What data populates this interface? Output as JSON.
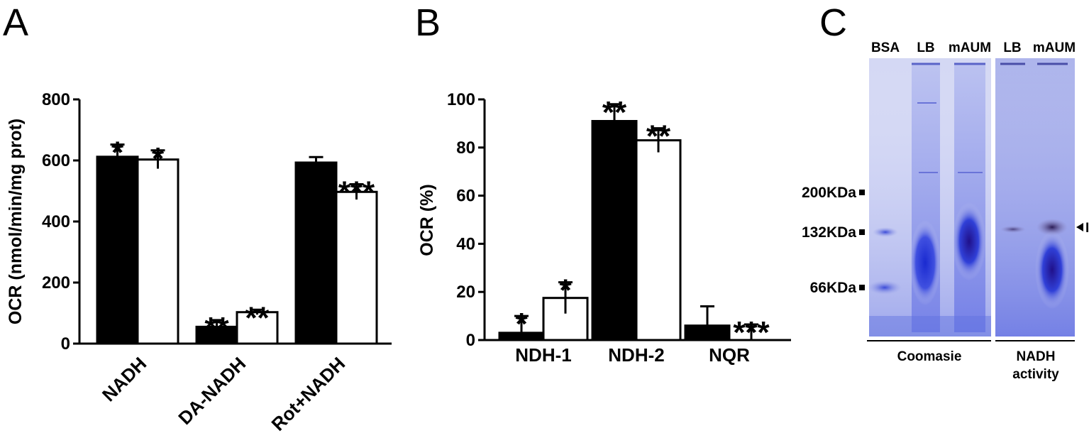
{
  "colors": {
    "series_fill": [
      "#000000",
      "#ffffff"
    ],
    "stroke": "#000000",
    "gel_background": "#cfd3f2",
    "gel_stain": "#2f3fd6",
    "gel_dark_band": "#2a1a55"
  },
  "chart_data": [
    {
      "type": "bar",
      "panel": "A",
      "ylabel": "OCR (nmol/min/mg prot)",
      "ylim": [
        0,
        800
      ],
      "yticks": [
        0,
        200,
        400,
        600,
        800
      ],
      "categories": [
        "NADH",
        "DA-NADH",
        "Rot+NADH"
      ],
      "series": [
        {
          "values": [
            612,
            55,
            593
          ],
          "errors": [
            40,
            22,
            18
          ],
          "significance": [
            "*",
            "**",
            ""
          ]
        },
        {
          "values": [
            603,
            103,
            497
          ],
          "errors": [
            30,
            8,
            25
          ],
          "significance": [
            "*",
            "**",
            "***"
          ]
        }
      ],
      "grid": false,
      "legend": "none"
    },
    {
      "type": "bar",
      "panel": "B",
      "ylabel": "OCR (%)",
      "ylim": [
        0,
        100
      ],
      "yticks": [
        0,
        20,
        40,
        60,
        80,
        100
      ],
      "categories": [
        "NDH-1",
        "NDH-2",
        "NQR"
      ],
      "series": [
        {
          "values": [
            3,
            91,
            6
          ],
          "errors": [
            7,
            7,
            8
          ],
          "significance": [
            "*",
            "**",
            ""
          ]
        },
        {
          "values": [
            17.5,
            83,
            0
          ],
          "errors": [
            6.5,
            5,
            6.5
          ],
          "significance": [
            "*",
            "**",
            "***"
          ]
        }
      ],
      "grid": false,
      "legend": "none"
    }
  ],
  "gel": {
    "panel": "C",
    "lanes": [
      "BSA",
      "LB",
      "mAUM",
      "LB",
      "mAUM"
    ],
    "markers": [
      "200KDa",
      "132KDa",
      "66KDa"
    ],
    "band_label": "I",
    "sections": [
      "Coomasie",
      "NADH",
      "activity"
    ]
  }
}
